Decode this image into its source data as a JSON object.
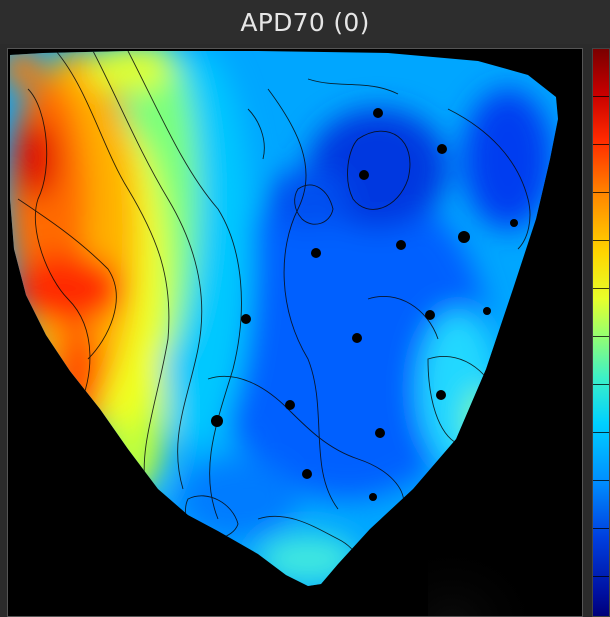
{
  "window": {
    "title": "APD70 (0)"
  },
  "map": {
    "description_icon": "heatmap-image",
    "colormap": [
      "#7a0000",
      "#ff2a00",
      "#ffd600",
      "#9cff6a",
      "#00d0ff",
      "#0040e0",
      "#00007a"
    ]
  },
  "colorbar": {
    "tick_count": 12
  }
}
